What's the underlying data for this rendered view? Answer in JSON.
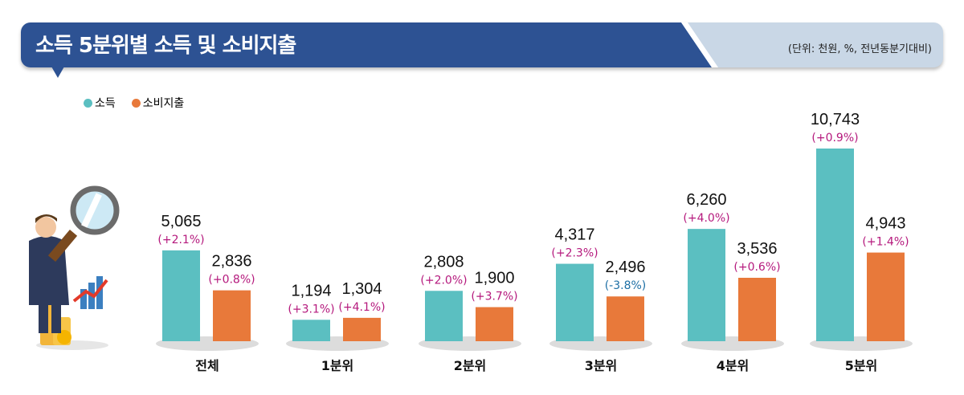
{
  "header": {
    "title": "소득 5분위별 소득 및 소비지출",
    "unit": "(단위: 천원, %, 전년동분기대비)"
  },
  "colors": {
    "income": "#5bbfc1",
    "expense": "#e8793a",
    "positive": "#b5197d",
    "negative": "#1d6fa5",
    "header": "#2d5293"
  },
  "chart_data": {
    "type": "bar",
    "title": "소득 5분위별 소득 및 소비지출",
    "unit": "(단위: 천원, %, 전년동분기대비)",
    "categories": [
      "전체",
      "1분위",
      "2분위",
      "3분위",
      "4분위",
      "5분위"
    ],
    "legend": {
      "position": "top-left",
      "entries": [
        "소득",
        "소비지출"
      ]
    },
    "series": [
      {
        "name": "소득",
        "values": [
          5065,
          1194,
          2808,
          4317,
          6260,
          10743
        ],
        "labels": [
          "5,065",
          "1,194",
          "2,808",
          "4,317",
          "6,260",
          "10,743"
        ],
        "changes": [
          "(+2.1%)",
          "(+3.1%)",
          "(+2.0%)",
          "(+2.3%)",
          "(+4.0%)",
          "(+0.9%)"
        ]
      },
      {
        "name": "소비지출",
        "values": [
          2836,
          1304,
          1900,
          2496,
          3536,
          4943
        ],
        "labels": [
          "2,836",
          "1,304",
          "1,900",
          "2,496",
          "3,536",
          "4,943"
        ],
        "changes": [
          "(+0.8%)",
          "(+4.1%)",
          "(+3.7%)",
          "(-3.8%)",
          "(+0.6%)",
          "(+1.4%)"
        ]
      }
    ],
    "ylim": [
      0,
      10743
    ],
    "grid": false
  }
}
